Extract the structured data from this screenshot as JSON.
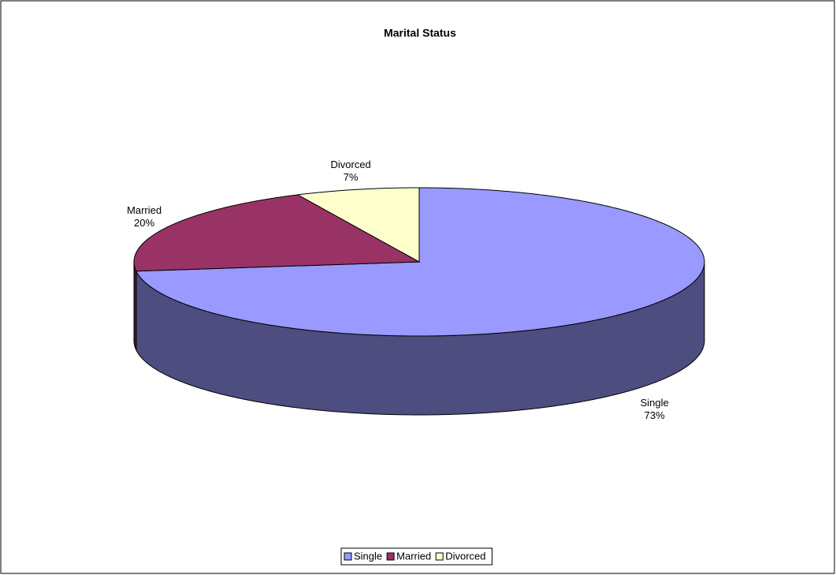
{
  "chart_data": {
    "type": "pie",
    "title": "Marital Status",
    "categories": [
      "Single",
      "Married",
      "Divorced"
    ],
    "values": [
      73,
      20,
      7
    ],
    "value_labels": [
      "73%",
      "20%",
      "7%"
    ],
    "colors": [
      "#9999ff",
      "#993366",
      "#ffffcc"
    ],
    "legend": "bottom"
  }
}
